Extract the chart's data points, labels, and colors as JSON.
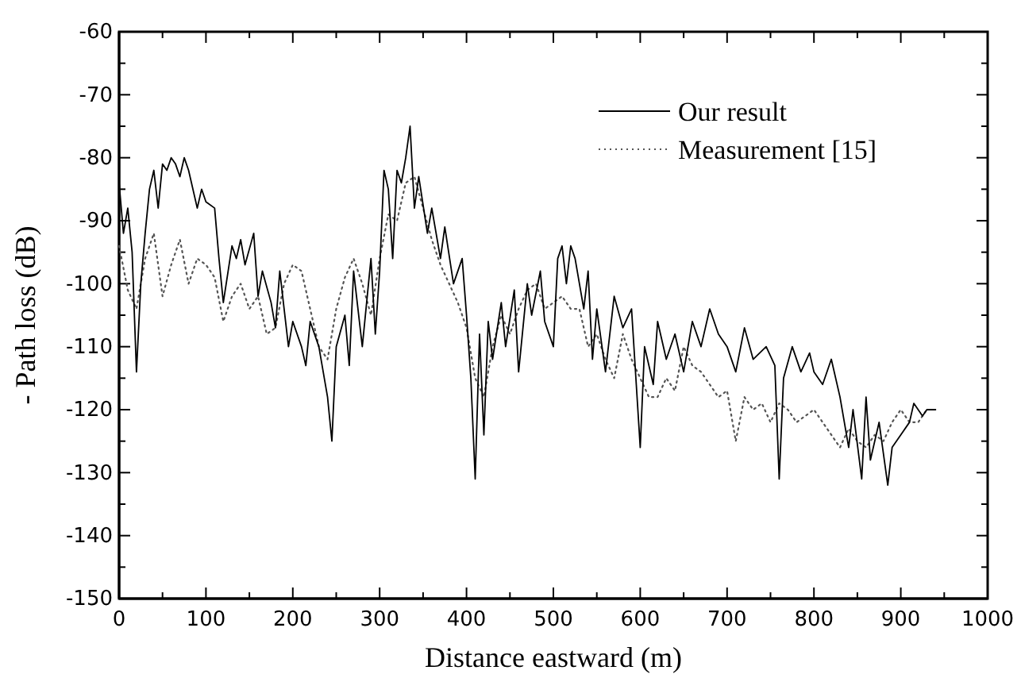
{
  "chart_data": {
    "type": "line",
    "xlabel": "Distance eastward (m)",
    "ylabel": "- Path loss (dB)",
    "xlim": [
      0,
      1000
    ],
    "ylim": [
      -150,
      -60
    ],
    "xticks": [
      0,
      {
        "value": 50,
        "label": null
      },
      100,
      {
        "value": 150,
        "label": null
      },
      200,
      {
        "value": 250,
        "label": null
      },
      300,
      {
        "value": 350,
        "label": null
      },
      400,
      {
        "value": 450,
        "label": null
      },
      500,
      {
        "value": 550,
        "label": null
      },
      600,
      {
        "value": 650,
        "label": null
      },
      700,
      {
        "value": 750,
        "label": null
      },
      800,
      {
        "value": 850,
        "label": null
      },
      900,
      {
        "value": 950,
        "label": null
      },
      1000
    ],
    "yticks": [
      -150,
      {
        "value": -145,
        "label": null
      },
      -140,
      {
        "value": -135,
        "label": null
      },
      -130,
      {
        "value": -125,
        "label": null
      },
      -120,
      {
        "value": -115,
        "label": null
      },
      -110,
      {
        "value": -105,
        "label": null
      },
      -100,
      {
        "value": -95,
        "label": null
      },
      -90,
      {
        "value": -85,
        "label": null
      },
      -80,
      {
        "value": -75,
        "label": null
      },
      -70,
      {
        "value": -65,
        "label": null
      },
      -60
    ],
    "grid": false,
    "legend": "top right",
    "series": [
      {
        "name": "Our result",
        "color": "#000000",
        "line_style": "solid",
        "x": [
          0,
          5,
          10,
          15,
          20,
          25,
          30,
          35,
          40,
          45,
          50,
          55,
          60,
          65,
          70,
          75,
          80,
          90,
          95,
          100,
          110,
          115,
          120,
          130,
          135,
          140,
          145,
          155,
          160,
          165,
          175,
          180,
          185,
          190,
          195,
          200,
          210,
          215,
          220,
          230,
          240,
          245,
          250,
          260,
          265,
          270,
          280,
          290,
          295,
          300,
          305,
          310,
          315,
          320,
          325,
          330,
          335,
          340,
          345,
          355,
          360,
          370,
          375,
          385,
          395,
          400,
          405,
          410,
          415,
          420,
          425,
          430,
          440,
          445,
          455,
          460,
          470,
          475,
          485,
          490,
          500,
          505,
          510,
          515,
          520,
          525,
          535,
          540,
          545,
          550,
          560,
          570,
          580,
          590,
          600,
          605,
          615,
          620,
          630,
          640,
          650,
          660,
          670,
          680,
          690,
          700,
          710,
          720,
          730,
          745,
          755,
          760,
          765,
          775,
          785,
          795,
          800,
          810,
          820,
          830,
          840,
          845,
          855,
          860,
          865,
          875,
          885,
          890,
          900,
          910,
          915,
          925,
          930,
          940
        ],
        "values": [
          -84,
          -92,
          -88,
          -95,
          -114,
          -100,
          -92,
          -85,
          -82,
          -88,
          -81,
          -82,
          -80,
          -81,
          -83,
          -80,
          -82,
          -88,
          -85,
          -87,
          -88,
          -96,
          -103,
          -94,
          -96,
          -93,
          -97,
          -92,
          -102,
          -98,
          -103,
          -107,
          -98,
          -104,
          -110,
          -106,
          -110,
          -113,
          -106,
          -110,
          -118,
          -125,
          -110,
          -105,
          -113,
          -98,
          -110,
          -96,
          -108,
          -98,
          -82,
          -85,
          -96,
          -82,
          -84,
          -80,
          -75,
          -88,
          -83,
          -92,
          -88,
          -96,
          -91,
          -100,
          -96,
          -105,
          -115,
          -131,
          -108,
          -124,
          -106,
          -112,
          -103,
          -110,
          -101,
          -114,
          -100,
          -105,
          -98,
          -106,
          -110,
          -96,
          -94,
          -100,
          -94,
          -96,
          -104,
          -98,
          -112,
          -104,
          -114,
          -102,
          -107,
          -104,
          -126,
          -110,
          -116,
          -106,
          -112,
          -108,
          -114,
          -106,
          -110,
          -104,
          -108,
          -110,
          -114,
          -107,
          -112,
          -110,
          -113,
          -131,
          -115,
          -110,
          -114,
          -111,
          -114,
          -116,
          -112,
          -118,
          -126,
          -120,
          -131,
          -118,
          -128,
          -122,
          -132,
          -126,
          -124,
          -122,
          -119,
          -121,
          -120,
          -120
        ]
      },
      {
        "name": "Measurement [15]",
        "color": "#555555",
        "line_style": "dotted",
        "x": [
          0,
          10,
          20,
          30,
          40,
          50,
          60,
          70,
          80,
          90,
          100,
          110,
          120,
          130,
          140,
          150,
          160,
          170,
          180,
          190,
          200,
          210,
          220,
          230,
          240,
          250,
          260,
          270,
          280,
          290,
          300,
          310,
          320,
          330,
          340,
          350,
          360,
          370,
          380,
          390,
          400,
          410,
          420,
          430,
          440,
          450,
          460,
          470,
          480,
          490,
          500,
          510,
          520,
          530,
          540,
          550,
          560,
          570,
          580,
          590,
          600,
          610,
          620,
          630,
          640,
          650,
          660,
          670,
          680,
          690,
          700,
          710,
          720,
          730,
          740,
          750,
          760,
          770,
          780,
          790,
          800,
          810,
          820,
          830,
          840,
          850,
          860,
          870,
          880,
          890,
          900,
          910,
          920,
          930
        ],
        "values": [
          -94,
          -101,
          -104,
          -96,
          -92,
          -102,
          -97,
          -93,
          -100,
          -96,
          -97,
          -99,
          -106,
          -102,
          -100,
          -104,
          -102,
          -108,
          -107,
          -100,
          -97,
          -98,
          -104,
          -110,
          -112,
          -104,
          -99,
          -96,
          -100,
          -105,
          -96,
          -89,
          -90,
          -84,
          -83,
          -88,
          -93,
          -97,
          -100,
          -103,
          -107,
          -115,
          -118,
          -110,
          -105,
          -108,
          -104,
          -101,
          -100,
          -104,
          -103,
          -102,
          -104,
          -104,
          -110,
          -108,
          -112,
          -115,
          -108,
          -112,
          -115,
          -118,
          -118,
          -115,
          -117,
          -110,
          -113,
          -114,
          -116,
          -118,
          -117,
          -125,
          -118,
          -120,
          -119,
          -122,
          -119,
          -120,
          -122,
          -121,
          -120,
          -122,
          -124,
          -126,
          -123,
          -125,
          -126,
          -124,
          -125,
          -122,
          -120,
          -122,
          -122,
          -120
        ]
      }
    ]
  }
}
